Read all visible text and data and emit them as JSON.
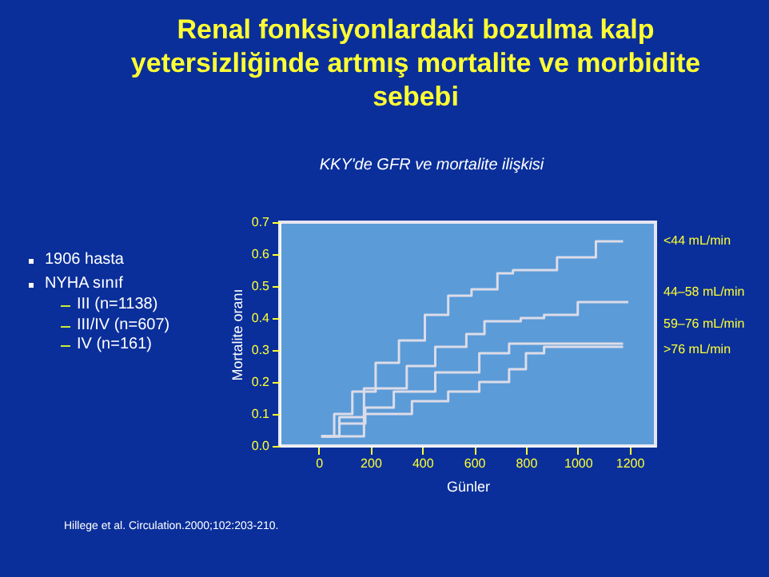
{
  "chart_data": {
    "type": "step",
    "title": "Renal fonksiyonlardaki bozulma kalp yetersizliğinde artmış mortalite ve morbidite sebebi",
    "subtitle": "KKY'de GFR ve mortalite ilişkisi",
    "xlabel": "Günler",
    "ylabel": "Mortalite oranı",
    "xlim": [
      -150,
      1300
    ],
    "xticks": [
      0,
      200,
      400,
      600,
      800,
      1000,
      1200
    ],
    "ylim": [
      0,
      0.7
    ],
    "yticks": [
      {
        "value": 0,
        "label": "0.0"
      },
      0.1,
      0.2,
      0.3,
      0.4,
      0.5,
      0.6,
      0.7
    ],
    "grid": false,
    "legend": false,
    "series": [
      {
        "name": "<44 mL/min",
        "color": "#dcdce8",
        "x": [
          10,
          60,
          130,
          220,
          310,
          410,
          500,
          590,
          690,
          750,
          920,
          1070,
          1175
        ],
        "values": [
          0.03,
          0.1,
          0.17,
          0.26,
          0.33,
          0.41,
          0.47,
          0.49,
          0.54,
          0.55,
          0.59,
          0.64,
          0.64
        ]
      },
      {
        "name": "44–58 mL/min",
        "color": "#dcdce8",
        "x": [
          10,
          80,
          175,
          340,
          450,
          570,
          640,
          780,
          870,
          1000,
          1195
        ],
        "values": [
          0.03,
          0.09,
          0.18,
          0.25,
          0.31,
          0.35,
          0.39,
          0.4,
          0.41,
          0.45,
          0.45
        ]
      },
      {
        "name": "59–76 mL/min",
        "color": "#dcdce8",
        "x": [
          10,
          80,
          180,
          290,
          450,
          620,
          735,
          1175
        ],
        "values": [
          0.03,
          0.07,
          0.12,
          0.17,
          0.23,
          0.29,
          0.32,
          0.32
        ]
      },
      {
        "name": ">76 mL/min",
        "color": "#dcdce8",
        "x": [
          10,
          175,
          360,
          500,
          620,
          690,
          735,
          800,
          870,
          1175
        ],
        "values": [
          0.03,
          0.1,
          0.14,
          0.17,
          0.2,
          0.2,
          0.24,
          0.29,
          0.31,
          0.31
        ]
      }
    ],
    "annotations": [
      "1906 hasta",
      "NYHA sınıf",
      "III (n=1138)",
      "III/IV (n=607)",
      "IV (n=161)",
      "Hillege et al. Circulation.2000;102:203-210."
    ]
  }
}
